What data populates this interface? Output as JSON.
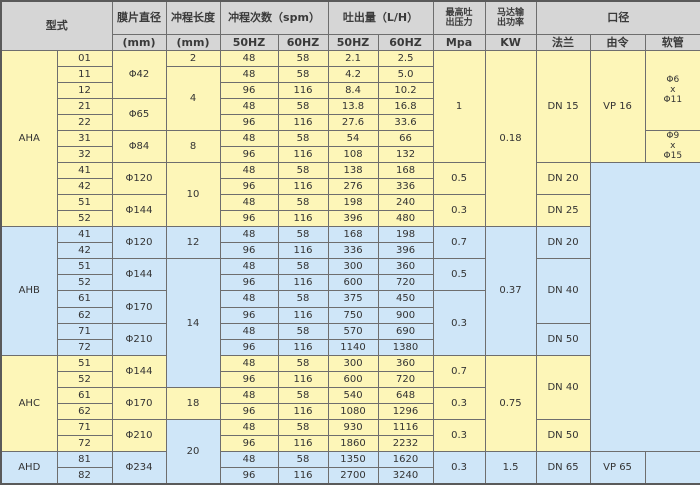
{
  "header": {
    "model": "型式",
    "diaphragm": "膜片直径",
    "stroke_length": "冲程长度",
    "stroke_rate": "冲程次数（spm）",
    "flow": "吐出量（L/H）",
    "pressure_line1": "最高吐",
    "pressure_line2": "出压力",
    "power_line1": "马达输",
    "power_line2": "出功率",
    "port": "口径",
    "diaphragm_unit": "(mm)",
    "stroke_unit": "(mm)",
    "spm_50": "50HZ",
    "spm_60": "60HZ",
    "flow_50": "50HZ",
    "flow_60": "60HZ",
    "pressure_unit": "Mpa",
    "power_unit": "KW",
    "flange": "法兰",
    "union": "由令",
    "hose": "软管"
  },
  "series": [
    "AHA",
    "AHB",
    "AHC",
    "AHD"
  ],
  "rows": [
    {
      "no": "01",
      "spm50": "48",
      "spm60": "58",
      "lh50": "2.1",
      "lh60": "2.5"
    },
    {
      "no": "11",
      "spm50": "48",
      "spm60": "58",
      "lh50": "4.2",
      "lh60": "5.0"
    },
    {
      "no": "12",
      "spm50": "96",
      "spm60": "116",
      "lh50": "8.4",
      "lh60": "10.2"
    },
    {
      "no": "21",
      "spm50": "48",
      "spm60": "58",
      "lh50": "13.8",
      "lh60": "16.8"
    },
    {
      "no": "22",
      "spm50": "96",
      "spm60": "116",
      "lh50": "27.6",
      "lh60": "33.6"
    },
    {
      "no": "31",
      "spm50": "48",
      "spm60": "58",
      "lh50": "54",
      "lh60": "66"
    },
    {
      "no": "32",
      "spm50": "96",
      "spm60": "116",
      "lh50": "108",
      "lh60": "132"
    },
    {
      "no": "41",
      "spm50": "48",
      "spm60": "58",
      "lh50": "138",
      "lh60": "168"
    },
    {
      "no": "42",
      "spm50": "96",
      "spm60": "116",
      "lh50": "276",
      "lh60": "336"
    },
    {
      "no": "51",
      "spm50": "48",
      "spm60": "58",
      "lh50": "198",
      "lh60": "240"
    },
    {
      "no": "52",
      "spm50": "96",
      "spm60": "116",
      "lh50": "396",
      "lh60": "480"
    },
    {
      "no": "41",
      "spm50": "48",
      "spm60": "58",
      "lh50": "168",
      "lh60": "198"
    },
    {
      "no": "42",
      "spm50": "96",
      "spm60": "116",
      "lh50": "336",
      "lh60": "396"
    },
    {
      "no": "51",
      "spm50": "48",
      "spm60": "58",
      "lh50": "300",
      "lh60": "360"
    },
    {
      "no": "52",
      "spm50": "96",
      "spm60": "116",
      "lh50": "600",
      "lh60": "720"
    },
    {
      "no": "61",
      "spm50": "48",
      "spm60": "58",
      "lh50": "375",
      "lh60": "450"
    },
    {
      "no": "62",
      "spm50": "96",
      "spm60": "116",
      "lh50": "750",
      "lh60": "900"
    },
    {
      "no": "71",
      "spm50": "48",
      "spm60": "58",
      "lh50": "570",
      "lh60": "690"
    },
    {
      "no": "72",
      "spm50": "96",
      "spm60": "116",
      "lh50": "1140",
      "lh60": "1380"
    },
    {
      "no": "51",
      "spm50": "48",
      "spm60": "58",
      "lh50": "300",
      "lh60": "360"
    },
    {
      "no": "52",
      "spm50": "96",
      "spm60": "116",
      "lh50": "600",
      "lh60": "720"
    },
    {
      "no": "61",
      "spm50": "48",
      "spm60": "58",
      "lh50": "540",
      "lh60": "648"
    },
    {
      "no": "62",
      "spm50": "96",
      "spm60": "116",
      "lh50": "1080",
      "lh60": "1296"
    },
    {
      "no": "71",
      "spm50": "48",
      "spm60": "58",
      "lh50": "930",
      "lh60": "1116"
    },
    {
      "no": "72",
      "spm50": "96",
      "spm60": "116",
      "lh50": "1860",
      "lh60": "2232"
    },
    {
      "no": "81",
      "spm50": "48",
      "spm60": "58",
      "lh50": "1350",
      "lh60": "1620"
    },
    {
      "no": "82",
      "spm50": "96",
      "spm60": "116",
      "lh50": "2700",
      "lh60": "3240"
    }
  ],
  "diaphragm": [
    "Φ42",
    "Φ65",
    "Φ84",
    "Φ120",
    "Φ144",
    "Φ120",
    "Φ144",
    "Φ170",
    "Φ210",
    "Φ144",
    "Φ170",
    "Φ210",
    "Φ234"
  ],
  "stroke_length": [
    "2",
    "4",
    "8",
    "10",
    "12",
    "14",
    "18",
    "20"
  ],
  "pressure": [
    "1",
    "0.5",
    "0.3",
    "0.7",
    "0.5",
    "0.3",
    "0.7",
    "0.3",
    "0.3",
    "0.3"
  ],
  "power": [
    "0.18",
    "0.37",
    "0.75",
    "1.5"
  ],
  "flange": [
    "DN 15",
    "DN 20",
    "DN 25",
    "DN 20",
    "DN 40",
    "DN 50",
    "DN 40",
    "DN 50",
    "DN 65"
  ],
  "union": [
    "VP 16",
    "VP 65"
  ],
  "hose": [
    {
      "top": "Φ6",
      "mid": "x",
      "bottom": "Φ11"
    },
    {
      "top": "Φ9",
      "mid": "x",
      "bottom": "Φ15"
    }
  ],
  "colors": {
    "yellow": "#fdf6b8",
    "blue": "#cfe6f8",
    "header": "#d6d6d6"
  }
}
